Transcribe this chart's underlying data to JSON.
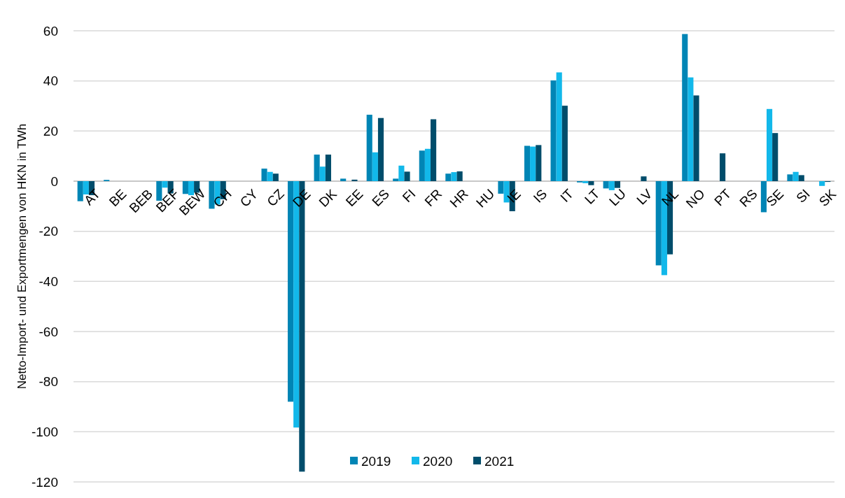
{
  "chart_data": {
    "type": "bar",
    "ylabel": "Netto-Import- und Exportmengen von HKN in TWh",
    "categories": [
      "AT",
      "BE",
      "BEB",
      "BEF",
      "BEW",
      "CH",
      "CY",
      "CZ",
      "DE",
      "DK",
      "EE",
      "ES",
      "FI",
      "FR",
      "HR",
      "HU",
      "IE",
      "IS",
      "IT",
      "LT",
      "LU",
      "LV",
      "NL",
      "NO",
      "PT",
      "RS",
      "SE",
      "SI",
      "SK"
    ],
    "series": [
      {
        "name": "2019",
        "color": "#0085b5",
        "values": [
          -8,
          0.5,
          0,
          -7.8,
          -5.1,
          -11,
          0,
          5,
          -88,
          10.6,
          1,
          26.5,
          1,
          12.2,
          3,
          0,
          -5,
          14.1,
          40.2,
          -0.5,
          -2.9,
          0,
          -33.6,
          58.7,
          0,
          0,
          -12.4,
          2.7,
          0
        ]
      },
      {
        "name": "2020",
        "color": "#12b8ea",
        "values": [
          -5.3,
          0,
          0,
          -2.6,
          -5.6,
          -9.3,
          0,
          3.7,
          -98.3,
          5.8,
          0,
          11.5,
          6.2,
          12.9,
          3.6,
          0,
          -8.5,
          13.8,
          43.4,
          -0.8,
          -3.6,
          0,
          -37.5,
          41.4,
          0,
          0,
          28.8,
          3.7,
          -1.9
        ]
      },
      {
        "name": "2021",
        "color": "#004d6b",
        "values": [
          -5.6,
          0,
          0,
          -4.9,
          -4.6,
          -7.2,
          0,
          3,
          -115.9,
          10.6,
          0.6,
          25.2,
          3.8,
          24.7,
          3.9,
          0,
          -12,
          14.4,
          30.1,
          -1.6,
          -2.7,
          1.9,
          -29.2,
          34.2,
          11.1,
          0,
          19.2,
          2.4,
          -0.3
        ]
      }
    ],
    "ylim": [
      -120,
      60
    ],
    "yticks": [
      -120,
      -100,
      -80,
      -60,
      -40,
      -20,
      0,
      20,
      40,
      60
    ],
    "grid": "y",
    "legend": "bottom"
  }
}
